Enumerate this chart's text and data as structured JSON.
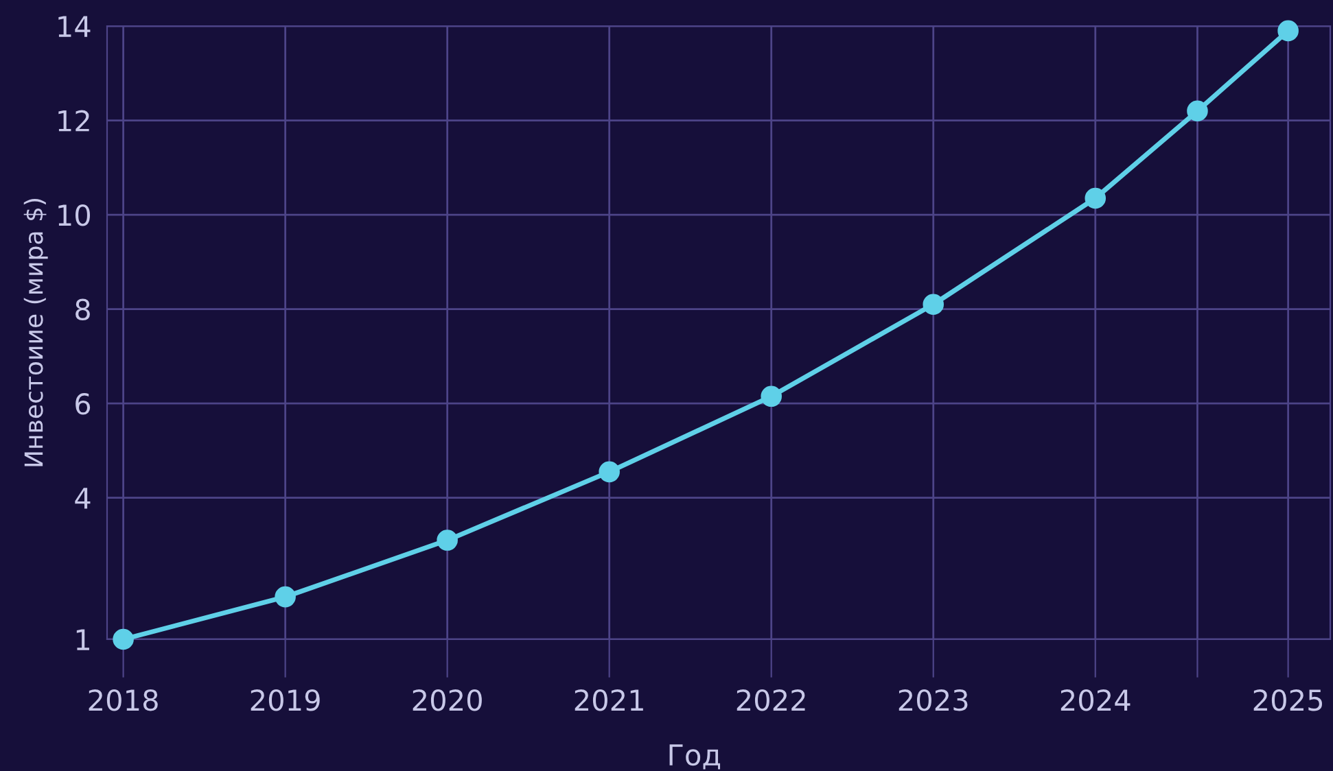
{
  "chart_data": {
    "type": "line",
    "xlabel": "Год",
    "ylabel": "Инвестоиие (мира $)",
    "x": [
      2018,
      2019,
      2020,
      2021,
      2022,
      2023,
      2024,
      2024.63,
      2025.19
    ],
    "series": [
      {
        "color": "#5fd0e8",
        "values": [
          1,
          1.9,
          3.1,
          4.55,
          6.15,
          8.1,
          10.35,
          12.2,
          13.9
        ]
      }
    ],
    "xlim": [
      2017.9,
      2025.45
    ],
    "xticks": [
      2018,
      2019,
      2020,
      2021,
      2022,
      2023,
      2024,
      {
        "value": 2024.63,
        "label": null
      },
      {
        "value": 2025.19,
        "label": "2025"
      }
    ],
    "ylim": [
      1,
      14
    ],
    "yticks": [
      1,
      4,
      6,
      8,
      10,
      12,
      14
    ],
    "grid": true,
    "marker": "circle",
    "line_style": "solid"
  }
}
